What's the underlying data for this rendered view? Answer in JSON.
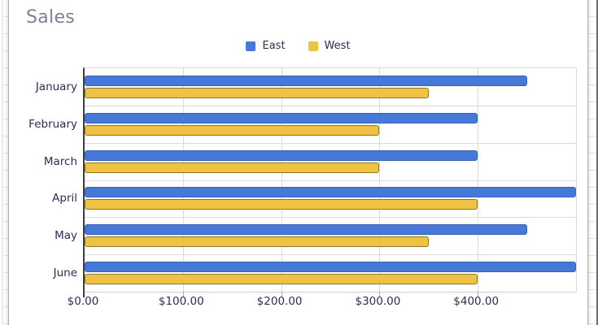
{
  "chart_data": {
    "type": "bar",
    "orientation": "horizontal",
    "title": "Sales",
    "categories": [
      "January",
      "February",
      "March",
      "April",
      "May",
      "June"
    ],
    "series": [
      {
        "name": "East",
        "color": "#4678d9",
        "border_color": "#3a62b3",
        "values": [
          450,
          400,
          400,
          500,
          450,
          500
        ]
      },
      {
        "name": "West",
        "color": "#f0c243",
        "border_color": "#8d7829",
        "values": [
          350,
          300,
          300,
          400,
          350,
          400
        ]
      }
    ],
    "xlabel": "",
    "ylabel": "",
    "xlim": [
      0,
      500
    ],
    "x_tick_values": [
      0,
      100,
      200,
      300,
      400
    ],
    "x_tick_labels": [
      "$0.00",
      "$100.00",
      "$200.00",
      "$300.00",
      "$400.00"
    ],
    "gridline_values": [
      100,
      200,
      300,
      400,
      500
    ],
    "grid": true,
    "legend_position": "top-center"
  },
  "colors": {
    "title_text": "#7e8095",
    "axis_text": "#2b2d55",
    "gridline": "#dadada",
    "axis_line": "#3f3f3f",
    "card_border": "#b0b0b0",
    "sheet_row_line": "#e4e4e4"
  }
}
